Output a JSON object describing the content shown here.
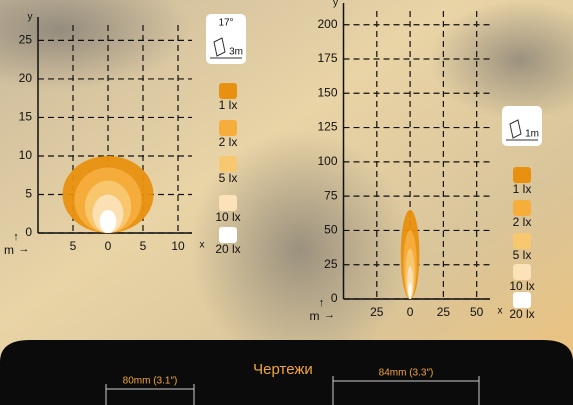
{
  "chart_data": [
    {
      "type": "isolux",
      "x_label": "x",
      "y_label": "y",
      "unit": "m",
      "icon": {
        "angle": "17°",
        "distance": "3m"
      },
      "xlim": [
        -10,
        12
      ],
      "ylim": [
        0,
        27
      ],
      "xticks": [
        {
          "value": -5,
          "label": "5"
        },
        0,
        5,
        10
      ],
      "yticks": [
        0,
        5,
        10,
        15,
        20,
        25
      ],
      "series": [
        {
          "name": "1 lx",
          "color": "#e8900f",
          "values": [
            10,
            6.5
          ]
        },
        {
          "name": "2 lx",
          "color": "#f5ad3c",
          "values": [
            8.5,
            4.8
          ]
        },
        {
          "name": "5 lx",
          "color": "#f8c870",
          "values": [
            6.8,
            3.3
          ]
        },
        {
          "name": "10 lx",
          "color": "#fbe2b8",
          "values": [
            5,
            2.2
          ]
        },
        {
          "name": "20 lx",
          "color": "#ffffff",
          "values": [
            3,
            1.2
          ]
        }
      ]
    },
    {
      "type": "isolux",
      "x_label": "x",
      "y_label": "y",
      "unit": "m",
      "icon": {
        "distance": "1m"
      },
      "xlim": [
        -50,
        60
      ],
      "ylim": [
        0,
        210
      ],
      "xticks": [
        {
          "value": -25,
          "label": "25"
        },
        0,
        25,
        50
      ],
      "yticks": [
        0,
        25,
        50,
        75,
        100,
        125,
        150,
        175,
        200
      ],
      "series": [
        {
          "name": "1 lx",
          "color": "#e8900f",
          "values": [
            65,
            7
          ]
        },
        {
          "name": "2 lx",
          "color": "#f5ad3c",
          "values": [
            50,
            5
          ]
        },
        {
          "name": "5 lx",
          "color": "#f8c870",
          "values": [
            37,
            3.5
          ]
        },
        {
          "name": "10 lx",
          "color": "#fbe2b8",
          "values": [
            24,
            2.2
          ]
        },
        {
          "name": "20 lx",
          "color": "#ffffff",
          "values": [
            12,
            1.2
          ]
        }
      ]
    }
  ],
  "footer": {
    "title": "Чертежи",
    "dimensions": [
      "80mm (3.1″)",
      "84mm (3.3″)"
    ]
  }
}
